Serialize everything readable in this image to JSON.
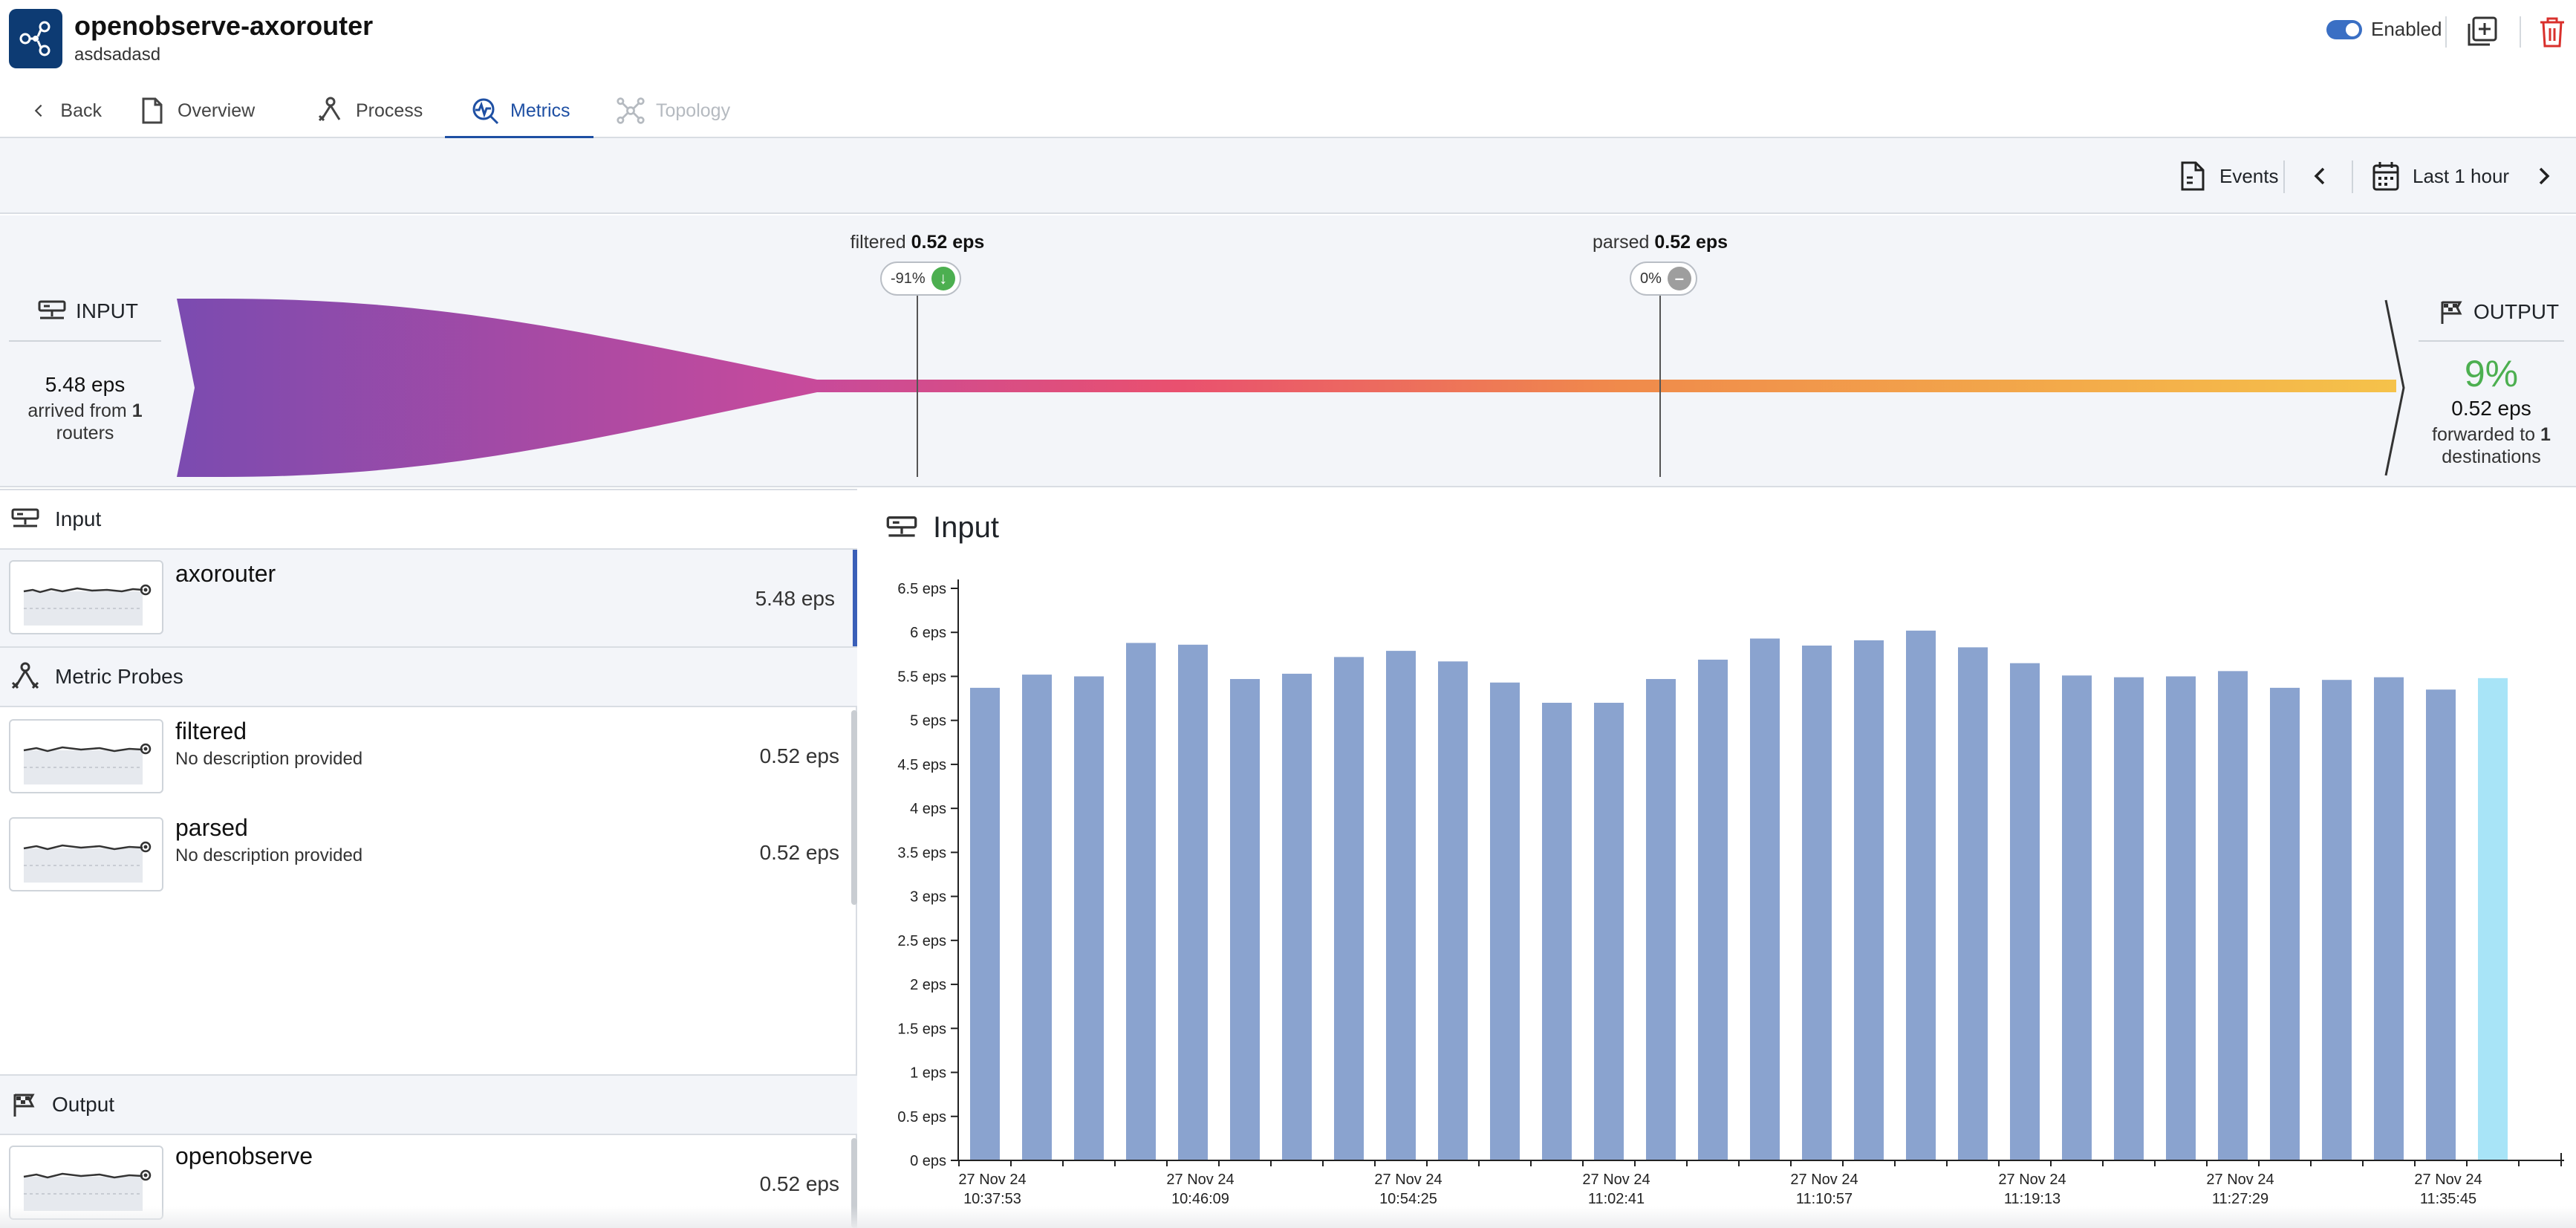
{
  "header": {
    "title": "openobserve-axorouter",
    "subtitle": "asdsadasd",
    "enabled_label": "Enabled"
  },
  "tabs": [
    {
      "label": "Back"
    },
    {
      "label": "Overview"
    },
    {
      "label": "Process"
    },
    {
      "label": "Metrics"
    },
    {
      "label": "Topology"
    }
  ],
  "toolbar": {
    "events_label": "Events",
    "time_range": "Last 1 hour"
  },
  "flow": {
    "input_label": "INPUT",
    "input_eps": "5.48 eps",
    "input_arrived_prefix": "arrived from ",
    "input_router_count": "1",
    "input_routers_suffix": "routers",
    "output_label": "OUTPUT",
    "output_percent": "9%",
    "output_eps": "0.52 eps",
    "output_forwarded_prefix": "forwarded to ",
    "output_destination_count": "1",
    "output_destinations_suffix": "destinations",
    "probes": [
      {
        "name": "filtered",
        "eps": "0.52 eps",
        "change": "-91%",
        "trend": "down",
        "color": "#4caf50"
      },
      {
        "name": "parsed",
        "eps": "0.52 eps",
        "change": "0%",
        "trend": "flat",
        "color": "#9e9e9e"
      }
    ],
    "gradient_colors": [
      "#7b4bb0",
      "#c64a9c",
      "#e9506f",
      "#f08a4b",
      "#f5c24a"
    ]
  },
  "left_panel": {
    "input_section": "Input",
    "input_items": [
      {
        "name": "axorouter",
        "eps": "5.48 eps"
      }
    ],
    "probes_section": "Metric Probes",
    "probe_items": [
      {
        "name": "filtered",
        "description": "No description provided",
        "eps": "0.52 eps"
      },
      {
        "name": "parsed",
        "description": "No description provided",
        "eps": "0.52 eps"
      }
    ],
    "output_section": "Output",
    "output_items": [
      {
        "name": "openobserve",
        "eps": "0.52 eps"
      }
    ]
  },
  "chart_title": "Input",
  "chart_data": {
    "type": "bar",
    "title": "Input",
    "ylabel": "eps",
    "ylim": [
      0,
      6.5
    ],
    "yticks": [
      0,
      0.5,
      1,
      1.5,
      2,
      2.5,
      3,
      3.5,
      4,
      4.5,
      5,
      5.5,
      6,
      6.5
    ],
    "ytick_labels": [
      "0 eps",
      "0.5 eps",
      "1 eps",
      "1.5 eps",
      "2 eps",
      "2.5 eps",
      "3 eps",
      "3.5 eps",
      "4 eps",
      "4.5 eps",
      "5 eps",
      "5.5 eps",
      "6 eps",
      "6.5 eps"
    ],
    "values": [
      5.37,
      5.52,
      5.5,
      5.88,
      5.86,
      5.47,
      5.53,
      5.72,
      5.79,
      5.67,
      5.43,
      5.2,
      5.2,
      5.47,
      5.69,
      5.93,
      5.85,
      5.91,
      6.02,
      5.83,
      5.65,
      5.51,
      5.49,
      5.5,
      5.56,
      5.37,
      5.46,
      5.49,
      5.35,
      5.48
    ],
    "highlight_index": 29,
    "bar_color": "#8aa3cf",
    "highlight_color": "#a8e4f7",
    "x_labels": [
      {
        "bar_index": 0,
        "date": "27 Nov 24",
        "time": "10:37:53"
      },
      {
        "bar_index": 4,
        "date": "27 Nov 24",
        "time": "10:46:09"
      },
      {
        "bar_index": 8,
        "date": "27 Nov 24",
        "time": "10:54:25"
      },
      {
        "bar_index": 12,
        "date": "27 Nov 24",
        "time": "11:02:41"
      },
      {
        "bar_index": 16,
        "date": "27 Nov 24",
        "time": "11:10:57"
      },
      {
        "bar_index": 20,
        "date": "27 Nov 24",
        "time": "11:19:13"
      },
      {
        "bar_index": 24,
        "date": "27 Nov 24",
        "time": "11:27:29"
      },
      {
        "bar_index": 28,
        "date": "27 Nov 24",
        "time": "11:35:45"
      }
    ]
  }
}
